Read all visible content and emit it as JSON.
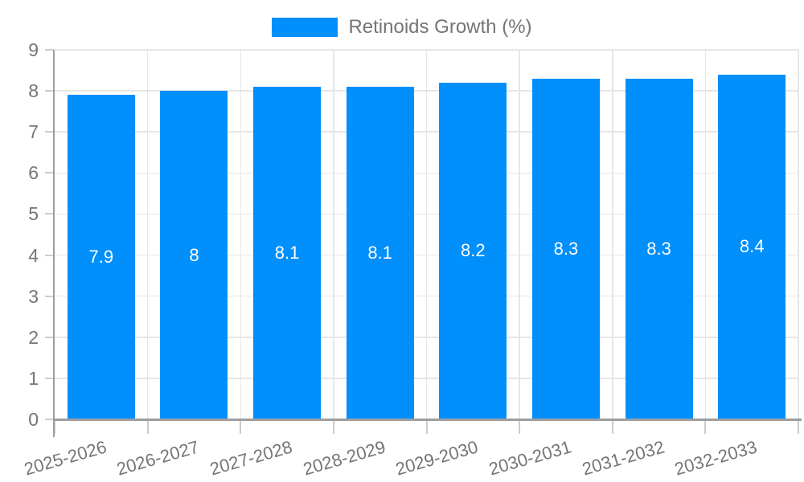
{
  "chart_data": {
    "type": "bar",
    "title": "Retinoids Growth (%)",
    "categories": [
      "2025-2026",
      "2026-2027",
      "2027-2028",
      "2028-2029",
      "2029-2030",
      "2030-2031",
      "2031-2032",
      "2032-2033"
    ],
    "values": [
      7.9,
      8,
      8.1,
      8.1,
      8.2,
      8.3,
      8.3,
      8.4
    ],
    "value_labels": [
      "7.9",
      "8",
      "8.1",
      "8.1",
      "8.2",
      "8.3",
      "8.3",
      "8.4"
    ],
    "xlabel": "",
    "ylabel": "",
    "ylim": [
      0,
      9
    ],
    "y_ticks": [
      0,
      1,
      2,
      3,
      4,
      5,
      6,
      7,
      8,
      9
    ],
    "grid": true,
    "legend_position": "top",
    "x_labels_rotated": true,
    "colors": {
      "bar": "#008FFB",
      "bar_label": "#ffffff",
      "axis_text": "#757575",
      "grid_line": "#e6e6e6",
      "tick_line": "#cccccc",
      "axis_line": "#9e9e9e"
    }
  }
}
